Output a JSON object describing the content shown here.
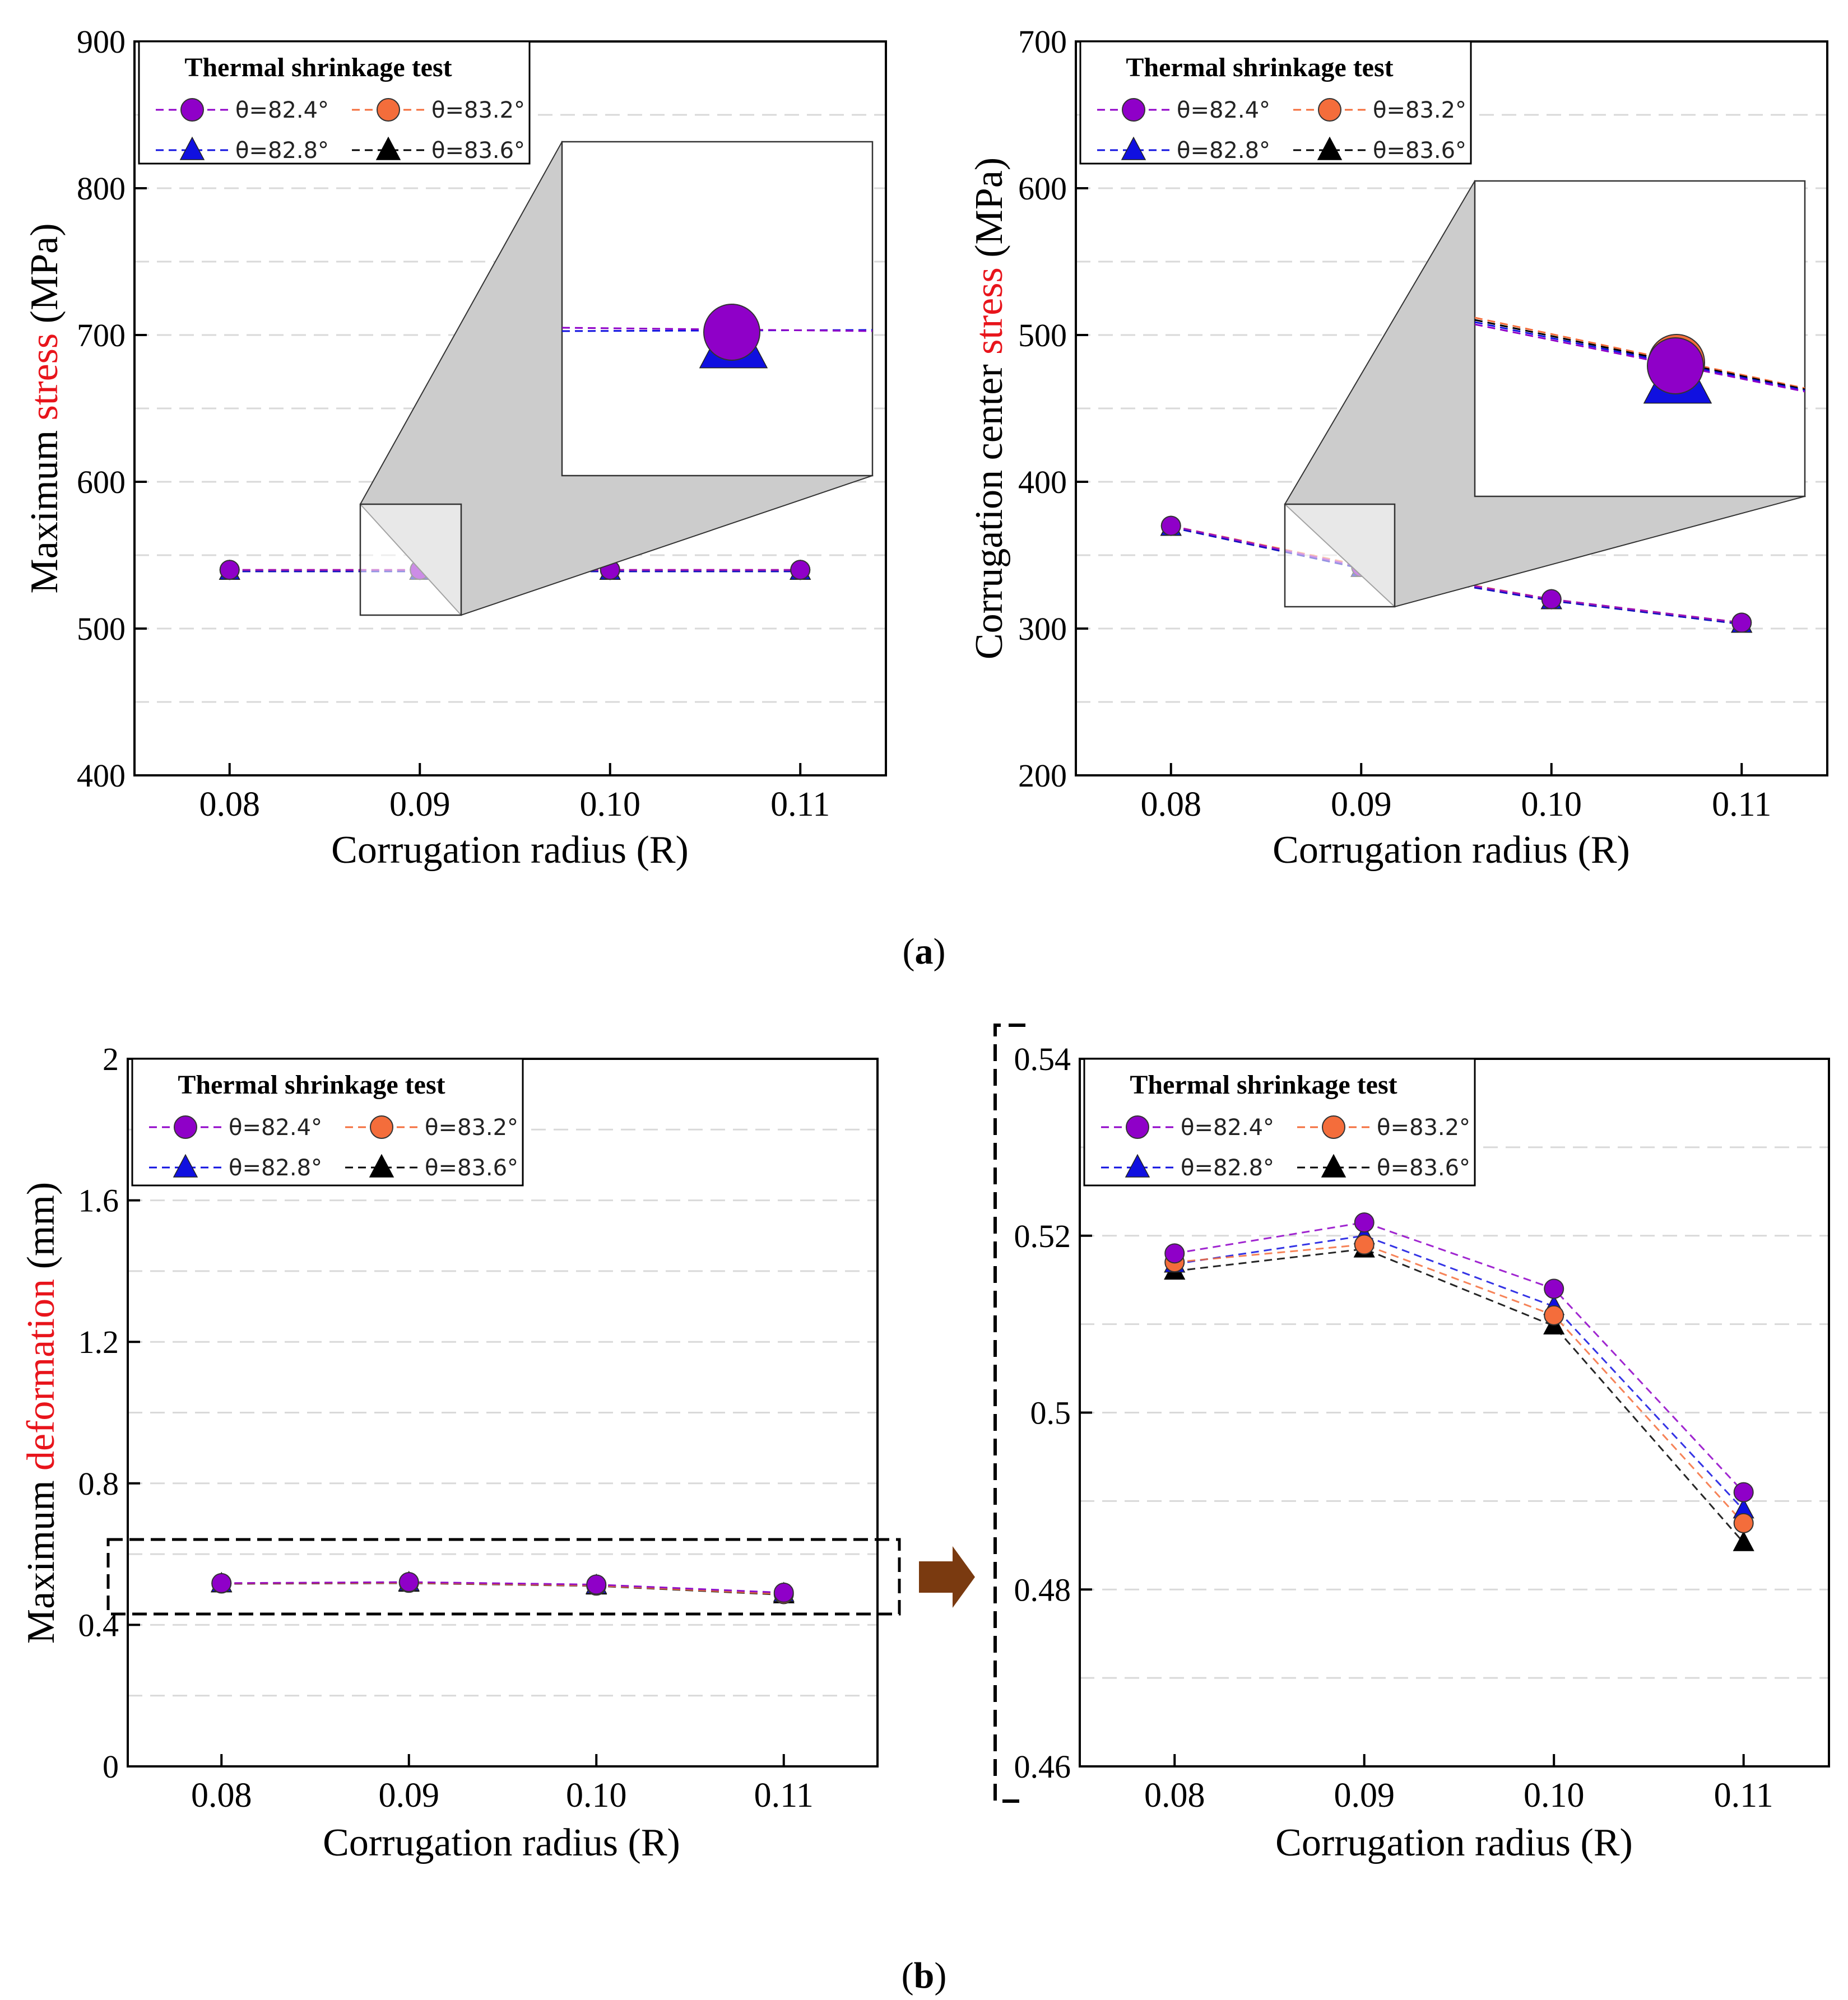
{
  "colors": {
    "purple": "#8f00c8",
    "orange": "#f46d3b",
    "blue": "#1010e0",
    "black": "#000000",
    "highlight_red": "#e8141b",
    "arrow_brown": "#7a3a10",
    "grid": "#d9d9d9",
    "zoom_fill": "#cccccc"
  },
  "legend": {
    "title": "Thermal shrinkage test",
    "entries": [
      {
        "label": "θ=82.4°",
        "marker": "circle",
        "color": "#8f00c8"
      },
      {
        "label": "θ=83.2°",
        "marker": "circle",
        "color": "#f46d3b"
      },
      {
        "label": "θ=82.8°",
        "marker": "triangle",
        "color": "#1010e0"
      },
      {
        "label": "θ=83.6°",
        "marker": "triangle",
        "color": "#000000"
      }
    ]
  },
  "panel_labels": {
    "a": "a",
    "b": "b"
  },
  "chart_data": [
    {
      "id": "max-stress",
      "type": "line",
      "ylabel_parts": [
        "Maximum ",
        "stress",
        " (MPa)"
      ],
      "xlabel": "Corrugation radius (R)",
      "categories": [
        "0.08",
        "0.09",
        "0.10",
        "0.11"
      ],
      "x": [
        0.08,
        0.09,
        0.1,
        0.11
      ],
      "xlim": [
        0.075,
        0.1145
      ],
      "ylim": [
        400,
        900
      ],
      "yticks": [
        "400",
        "500",
        "600",
        "700",
        "800",
        "900"
      ],
      "grid": true,
      "legend_position": "top-left",
      "series": [
        {
          "name": "θ=82.4°",
          "values": [
            540,
            540,
            540,
            540
          ]
        },
        {
          "name": "θ=83.2°",
          "values": [
            540,
            540,
            540,
            540
          ]
        },
        {
          "name": "θ=82.8°",
          "values": [
            539,
            539,
            539,
            539
          ]
        },
        {
          "name": "θ=83.6°",
          "values": [
            539,
            539,
            539,
            539
          ]
        }
      ],
      "inset": "zoom of point at R=0.09"
    },
    {
      "id": "center-stress",
      "type": "line",
      "ylabel_parts": [
        "Corrugation center ",
        "stress",
        " (MPa)"
      ],
      "xlabel": "Corrugation radius (R)",
      "categories": [
        "0.08",
        "0.09",
        "0.10",
        "0.11"
      ],
      "x": [
        0.08,
        0.09,
        0.1,
        0.11
      ],
      "xlim": [
        0.075,
        0.1145
      ],
      "ylim": [
        200,
        700
      ],
      "yticks": [
        "200",
        "300",
        "400",
        "500",
        "600",
        "700"
      ],
      "grid": true,
      "legend_position": "top-left",
      "series": [
        {
          "name": "θ=82.4°",
          "values": [
            370,
            342,
            320,
            304
          ]
        },
        {
          "name": "θ=83.2°",
          "values": [
            370,
            343,
            320,
            304
          ]
        },
        {
          "name": "θ=82.8°",
          "values": [
            369,
            341,
            319,
            303
          ]
        },
        {
          "name": "θ=83.6°",
          "values": [
            369,
            341,
            319,
            303
          ]
        }
      ],
      "inset": "zoom of point at R=0.09"
    },
    {
      "id": "max-deformation",
      "type": "line",
      "ylabel_parts": [
        "Maximum ",
        "deformation",
        " (mm)"
      ],
      "xlabel": "Corrugation radius (R)",
      "categories": [
        "0.08",
        "0.09",
        "0.10",
        "0.11"
      ],
      "x": [
        0.08,
        0.09,
        0.1,
        0.11
      ],
      "xlim": [
        0.075,
        0.115
      ],
      "ylim": [
        0,
        2
      ],
      "yticks": [
        "0",
        "0.4",
        "0.8",
        "1.2",
        "1.6",
        "2"
      ],
      "grid": true,
      "legend_position": "top-left",
      "series": [
        {
          "name": "θ=82.4°",
          "values": [
            0.518,
            0.521,
            0.514,
            0.491
          ]
        },
        {
          "name": "θ=83.2°",
          "values": [
            0.517,
            0.519,
            0.511,
            0.487
          ]
        },
        {
          "name": "θ=82.8°",
          "values": [
            0.517,
            0.52,
            0.512,
            0.489
          ]
        },
        {
          "name": "θ=83.6°",
          "values": [
            0.516,
            0.518,
            0.51,
            0.485
          ]
        }
      ]
    },
    {
      "id": "max-deformation-zoom",
      "type": "line",
      "ylabel_parts": [],
      "xlabel": "Corrugation radius (R)",
      "categories": [
        "0.08",
        "0.09",
        "0.10",
        "0.11"
      ],
      "x": [
        0.08,
        0.09,
        0.1,
        0.11
      ],
      "xlim": [
        0.075,
        0.1145
      ],
      "ylim": [
        0.46,
        0.54
      ],
      "yticks": [
        "0.46",
        "0.48",
        "0.5",
        "0.52",
        "0.54"
      ],
      "grid": true,
      "legend_position": "top-left",
      "series": [
        {
          "name": "θ=82.4°",
          "values": [
            0.518,
            0.5215,
            0.514,
            0.491
          ]
        },
        {
          "name": "θ=83.2°",
          "values": [
            0.517,
            0.519,
            0.511,
            0.4875
          ]
        },
        {
          "name": "θ=82.8°",
          "values": [
            0.5168,
            0.52,
            0.512,
            0.489
          ]
        },
        {
          "name": "θ=83.6°",
          "values": [
            0.516,
            0.5185,
            0.5098,
            0.4853
          ]
        }
      ]
    }
  ]
}
